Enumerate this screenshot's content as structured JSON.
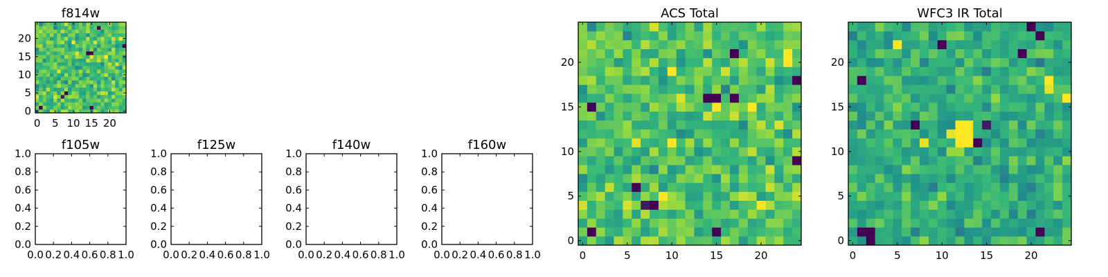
{
  "colormap": {
    "name": "viridis",
    "stops": [
      "#440154",
      "#31688e",
      "#21918c",
      "#35b779",
      "#90d743",
      "#fde725"
    ]
  },
  "chart_data": [
    {
      "id": "f814w",
      "type": "heatmap",
      "title": "f814w",
      "grid": false,
      "cols": 25,
      "rows": 25,
      "xlim": [
        -0.5,
        24.5
      ],
      "ylim": [
        -0.5,
        24.5
      ],
      "xticks": [
        0,
        5,
        10,
        15,
        20
      ],
      "yticks": [
        0,
        5,
        10,
        15,
        20
      ],
      "xtick_labels": [
        "0",
        "5",
        "10",
        "15",
        "20"
      ],
      "ytick_labels": [
        "0",
        "5",
        "10",
        "15",
        "20"
      ],
      "vmin": 0,
      "vmax": 1,
      "base_level": 0.66,
      "spread": 0.16,
      "seed": 814,
      "hotspots": [
        {
          "x": 1,
          "y": 1,
          "v": 0.0
        },
        {
          "x": 14,
          "y": 16,
          "v": 0.0
        },
        {
          "x": 15,
          "y": 16,
          "v": 0.0
        },
        {
          "x": 17,
          "y": 23,
          "v": 0.0
        },
        {
          "x": 24,
          "y": 18,
          "v": 0.0
        },
        {
          "x": 15,
          "y": 1,
          "v": 0.0
        },
        {
          "x": 8,
          "y": 5,
          "v": 0.0
        },
        {
          "x": 7,
          "y": 4,
          "v": 0.05
        },
        {
          "x": 10,
          "y": 19,
          "v": 1.0
        },
        {
          "x": 23,
          "y": 20,
          "v": 1.0
        }
      ]
    },
    {
      "id": "f105w",
      "type": "empty",
      "title": "f105w",
      "xlim": [
        0,
        1
      ],
      "ylim": [
        0,
        1
      ],
      "xtick_labels": [
        "0.0",
        "0.2",
        "0.4",
        "0.6",
        "0.8",
        "1.0"
      ],
      "ytick_labels": [
        "0.0",
        "0.2",
        "0.4",
        "0.6",
        "0.8",
        "1.0"
      ]
    },
    {
      "id": "f125w",
      "type": "empty",
      "title": "f125w",
      "xlim": [
        0,
        1
      ],
      "ylim": [
        0,
        1
      ],
      "xtick_labels": [
        "0.0",
        "0.2",
        "0.4",
        "0.6",
        "0.8",
        "1.0"
      ],
      "ytick_labels": [
        "0.0",
        "0.2",
        "0.4",
        "0.6",
        "0.8",
        "1.0"
      ]
    },
    {
      "id": "f140w",
      "type": "empty",
      "title": "f140w",
      "xlim": [
        0,
        1
      ],
      "ylim": [
        0,
        1
      ],
      "xtick_labels": [
        "0.0",
        "0.2",
        "0.4",
        "0.6",
        "0.8",
        "1.0"
      ],
      "ytick_labels": [
        "0.0",
        "0.2",
        "0.4",
        "0.6",
        "0.8",
        "1.0"
      ]
    },
    {
      "id": "f160w",
      "type": "empty",
      "title": "f160w",
      "xlim": [
        0,
        1
      ],
      "ylim": [
        0,
        1
      ],
      "xtick_labels": [
        "0.0",
        "0.2",
        "0.4",
        "0.6",
        "0.8",
        "1.0"
      ],
      "ytick_labels": [
        "0.0",
        "0.2",
        "0.4",
        "0.6",
        "0.8",
        "1.0"
      ]
    },
    {
      "id": "acs-total",
      "type": "heatmap",
      "title": "ACS Total",
      "grid": false,
      "cols": 25,
      "rows": 25,
      "xlim": [
        -0.5,
        24.5
      ],
      "ylim": [
        -0.5,
        24.5
      ],
      "xticks": [
        0,
        5,
        10,
        15,
        20
      ],
      "yticks": [
        0,
        5,
        10,
        15,
        20
      ],
      "xtick_labels": [
        "0",
        "5",
        "10",
        "15",
        "20"
      ],
      "ytick_labels": [
        "0",
        "5",
        "10",
        "15",
        "20"
      ],
      "vmin": 0,
      "vmax": 1,
      "base_level": 0.66,
      "spread": 0.16,
      "seed": 814,
      "hotspots": [
        {
          "x": 1,
          "y": 1,
          "v": 0.0
        },
        {
          "x": 1,
          "y": 15,
          "v": 0.0
        },
        {
          "x": 6,
          "y": 6,
          "v": 0.0
        },
        {
          "x": 8,
          "y": 4,
          "v": 0.0
        },
        {
          "x": 7,
          "y": 4,
          "v": 0.05
        },
        {
          "x": 14,
          "y": 16,
          "v": 0.0
        },
        {
          "x": 15,
          "y": 16,
          "v": 0.0
        },
        {
          "x": 17,
          "y": 16,
          "v": 0.0
        },
        {
          "x": 17,
          "y": 21,
          "v": 0.0
        },
        {
          "x": 15,
          "y": 1,
          "v": 0.0
        },
        {
          "x": 24,
          "y": 18,
          "v": 0.0
        },
        {
          "x": 24,
          "y": 9,
          "v": 0.0
        },
        {
          "x": 9,
          "y": 5,
          "v": 1.0
        },
        {
          "x": 10,
          "y": 11,
          "v": 1.0
        },
        {
          "x": 10,
          "y": 19,
          "v": 1.0
        },
        {
          "x": 23,
          "y": 20,
          "v": 1.0
        },
        {
          "x": 23,
          "y": 21,
          "v": 1.0
        },
        {
          "x": 20,
          "y": 4,
          "v": 1.0
        }
      ]
    },
    {
      "id": "wfc3-ir-total",
      "type": "heatmap",
      "title": "WFC3 IR Total",
      "grid": false,
      "cols": 25,
      "rows": 25,
      "xlim": [
        -0.5,
        24.5
      ],
      "ylim": [
        -0.5,
        24.5
      ],
      "xticks": [
        0,
        5,
        10,
        15,
        20
      ],
      "yticks": [
        0,
        5,
        10,
        15,
        20
      ],
      "xtick_labels": [
        "0",
        "5",
        "10",
        "15",
        "20"
      ],
      "ytick_labels": [
        "0",
        "5",
        "10",
        "15",
        "20"
      ],
      "vmin": 0,
      "vmax": 1,
      "base_level": 0.55,
      "spread": 0.13,
      "seed": 160,
      "hotspots": [
        {
          "x": 1,
          "y": 1,
          "v": 0.0
        },
        {
          "x": 2,
          "y": 1,
          "v": 0.0
        },
        {
          "x": 2,
          "y": 0,
          "v": 0.0
        },
        {
          "x": 1,
          "y": 18,
          "v": 0.0
        },
        {
          "x": 7,
          "y": 13,
          "v": 0.0
        },
        {
          "x": 10,
          "y": 22,
          "v": 0.0
        },
        {
          "x": 14,
          "y": 11,
          "v": 0.0
        },
        {
          "x": 15,
          "y": 13,
          "v": 0.05
        },
        {
          "x": 19,
          "y": 21,
          "v": 0.0
        },
        {
          "x": 21,
          "y": 23,
          "v": 0.0
        },
        {
          "x": 21,
          "y": 1,
          "v": 0.0
        },
        {
          "x": 20,
          "y": 24,
          "v": 0.0
        },
        {
          "x": 12,
          "y": 12,
          "v": 1.0
        },
        {
          "x": 13,
          "y": 12,
          "v": 1.0
        },
        {
          "x": 12,
          "y": 13,
          "v": 1.0
        },
        {
          "x": 13,
          "y": 13,
          "v": 1.0
        },
        {
          "x": 12,
          "y": 11,
          "v": 1.0
        },
        {
          "x": 13,
          "y": 11,
          "v": 1.0
        },
        {
          "x": 11,
          "y": 12,
          "v": 0.95
        },
        {
          "x": 5,
          "y": 22,
          "v": 1.0
        },
        {
          "x": 22,
          "y": 18,
          "v": 1.0
        },
        {
          "x": 22,
          "y": 17,
          "v": 0.95
        },
        {
          "x": 24,
          "y": 16,
          "v": 1.0
        },
        {
          "x": 8,
          "y": 11,
          "v": 0.95
        }
      ]
    }
  ]
}
